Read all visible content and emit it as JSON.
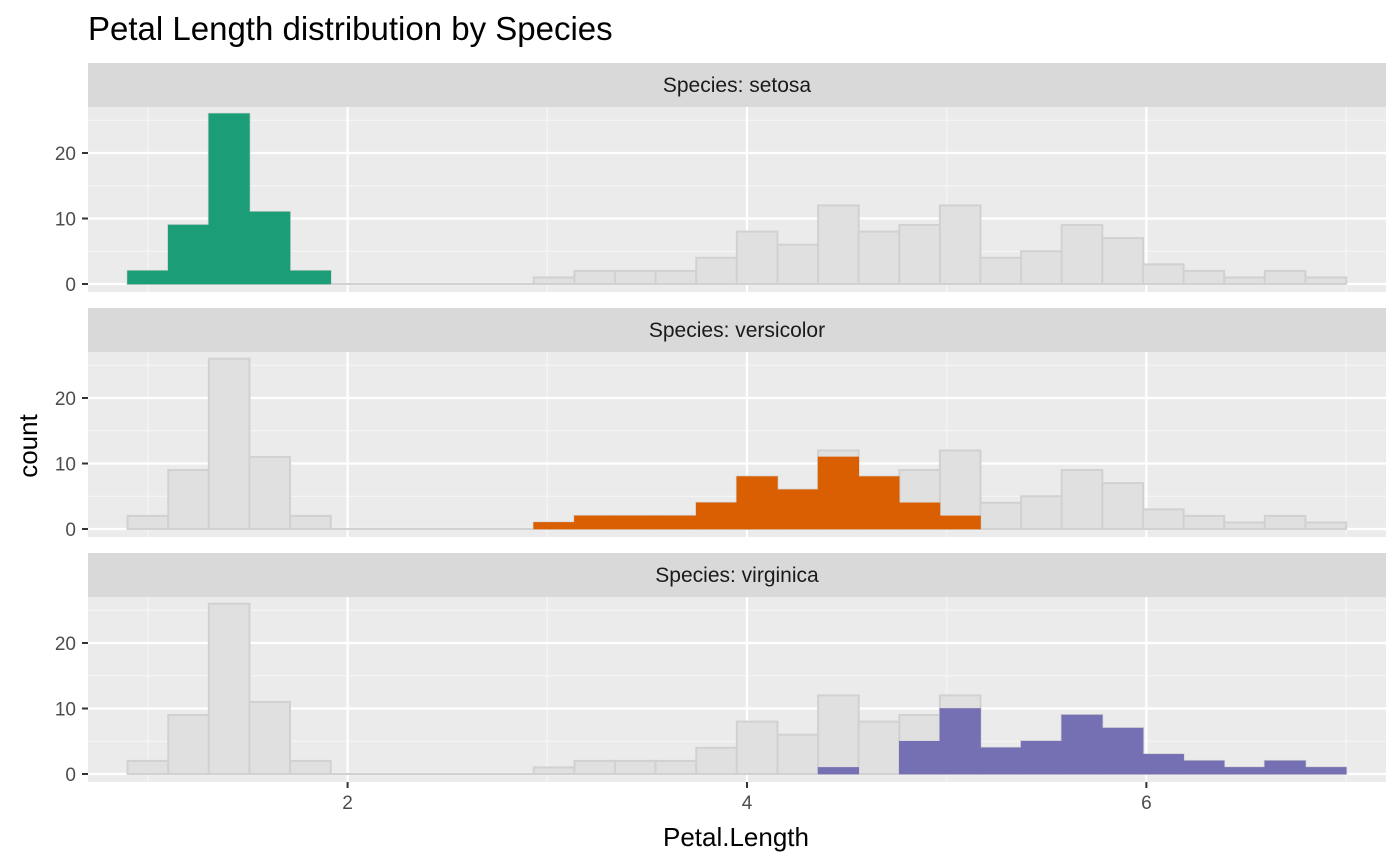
{
  "chart_data": {
    "type": "histogram",
    "title": "Petal Length distribution by Species",
    "xlabel": "Petal.Length",
    "ylabel": "count",
    "facet_prefix": "Species: ",
    "xlim": [
      0.7,
      7.2
    ],
    "ylim": [
      0,
      28
    ],
    "x_ticks": [
      2,
      4,
      6
    ],
    "y_ticks": [
      0,
      10,
      20
    ],
    "bin_width": 0.2034,
    "bin_starts": [
      0.898,
      1.102,
      1.305,
      1.508,
      1.712,
      1.915,
      2.119,
      2.322,
      2.525,
      2.729,
      2.932,
      3.136,
      3.339,
      3.542,
      3.746,
      3.949,
      4.153,
      4.356,
      4.559,
      4.763,
      4.966,
      5.169,
      5.373,
      5.576,
      5.78,
      5.983,
      6.186,
      6.39,
      6.593,
      6.797
    ],
    "background_series": {
      "name": "all",
      "color": "#E0E0E0",
      "values": [
        2,
        9,
        26,
        11,
        2,
        0,
        0,
        0,
        0,
        0,
        1,
        2,
        2,
        2,
        4,
        8,
        6,
        12,
        8,
        9,
        12,
        4,
        5,
        9,
        7,
        3,
        2,
        1,
        2,
        1
      ]
    },
    "series": [
      {
        "name": "setosa",
        "color": "#1B9E77",
        "values": [
          2,
          9,
          26,
          11,
          2,
          0,
          0,
          0,
          0,
          0,
          0,
          0,
          0,
          0,
          0,
          0,
          0,
          0,
          0,
          0,
          0,
          0,
          0,
          0,
          0,
          0,
          0,
          0,
          0,
          0
        ]
      },
      {
        "name": "versicolor",
        "color": "#D95F02",
        "values": [
          0,
          0,
          0,
          0,
          0,
          0,
          0,
          0,
          0,
          0,
          1,
          2,
          2,
          2,
          4,
          8,
          6,
          11,
          8,
          4,
          2,
          0,
          0,
          0,
          0,
          0,
          0,
          0,
          0,
          0
        ]
      },
      {
        "name": "virginica",
        "color": "#7570B3",
        "values": [
          0,
          0,
          0,
          0,
          0,
          0,
          0,
          0,
          0,
          0,
          0,
          0,
          0,
          0,
          0,
          0,
          0,
          1,
          0,
          5,
          10,
          4,
          5,
          9,
          7,
          3,
          2,
          1,
          2,
          1
        ]
      }
    ],
    "panel_background": "#EBEBEB",
    "strip_background": "#D9D9D9",
    "grid": true,
    "legend": "none"
  }
}
